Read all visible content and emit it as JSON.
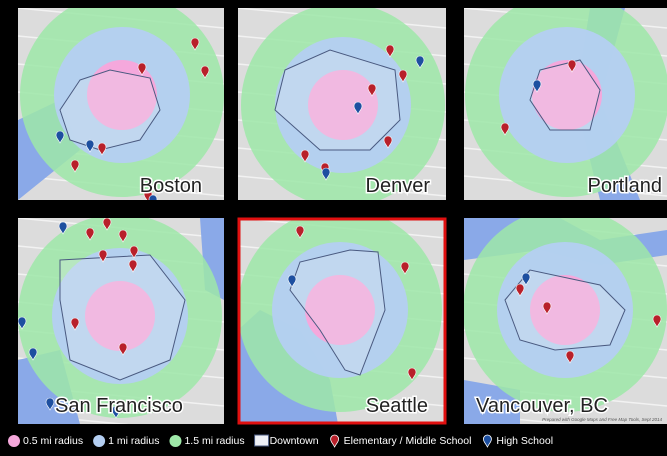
{
  "panels": [
    {
      "city": "Boston"
    },
    {
      "city": "Denver"
    },
    {
      "city": "Portland"
    },
    {
      "city": "San Francisco"
    },
    {
      "city": "Seattle"
    },
    {
      "city": "Vancouver, BC"
    }
  ],
  "credit": "Prepared with Google Maps and Free Map Tools, Sept 2014",
  "legend": {
    "items": [
      {
        "label": "0.5 mi radius"
      },
      {
        "label": "1 mi radius"
      },
      {
        "label": "1.5 mi radius"
      },
      {
        "label": "Downtown"
      },
      {
        "label": "Elementary / Middle School"
      },
      {
        "label": "High School"
      }
    ]
  }
}
